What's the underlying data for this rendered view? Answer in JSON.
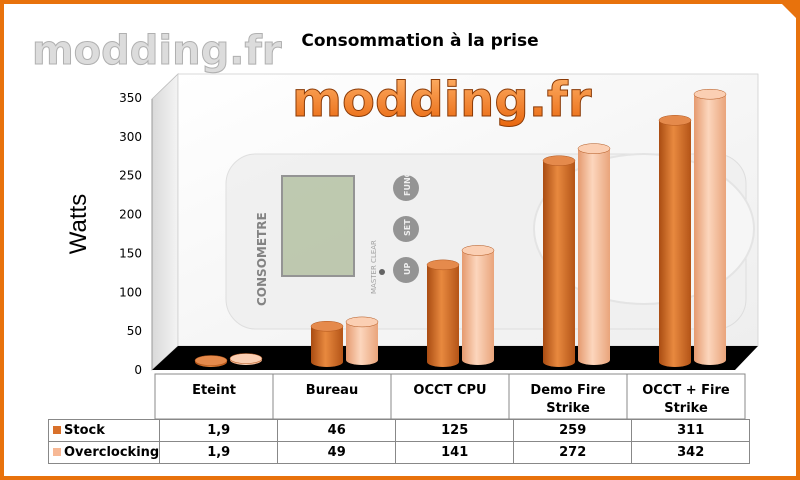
{
  "watermark": {
    "text": "modding.fr"
  },
  "chart_data": {
    "type": "bar",
    "title": "Consommation à la prise",
    "ylabel": "Watts",
    "xlabel": "",
    "ylim": [
      0,
      350
    ],
    "yticks": [
      "0",
      "50",
      "100",
      "150",
      "200",
      "250",
      "300",
      "350"
    ],
    "categories": [
      "Eteint",
      "Bureau",
      "OCCT CPU",
      "Demo Fire Strike",
      "OCCT + Fire Strike"
    ],
    "series": [
      {
        "name": "Stock",
        "color": "#d9712a",
        "values": [
          1.9,
          46,
          125,
          259,
          311
        ],
        "labels": [
          "1,9",
          "46",
          "125",
          "259",
          "311"
        ]
      },
      {
        "name": "Overclocking",
        "color": "#f7b895",
        "values": [
          1.9,
          49,
          141,
          272,
          342
        ],
        "labels": [
          "1,9",
          "49",
          "141",
          "272",
          "342"
        ]
      }
    ],
    "grid": false,
    "legend": "data-table"
  },
  "background_photo": {
    "device_label": "CONSOMETRE",
    "buttons": [
      "FUNC",
      "SET",
      "UP"
    ],
    "small_text": "MASTER CLEAR"
  }
}
